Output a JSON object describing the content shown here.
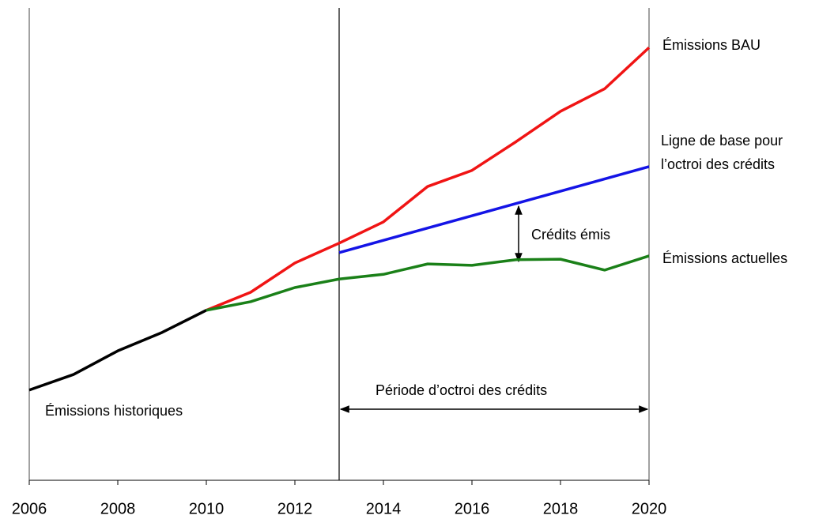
{
  "chart_data": {
    "type": "line",
    "annotations": [
      "Crédits émis",
      "Période d’octroi des crédits"
    ],
    "xlim": [
      2006,
      2020
    ],
    "xticks": [
      2006,
      2008,
      2010,
      2012,
      2014,
      2016,
      2018,
      2020
    ],
    "ylim": [
      0,
      100
    ],
    "series": [
      {
        "name": "Émissions historiques",
        "color": "#000000",
        "x": [
          2006,
          2007,
          2008,
          2009,
          2010
        ],
        "values": [
          19.1,
          22.4,
          27.4,
          31.3,
          36.0
        ]
      },
      {
        "name": "Émissions BAU",
        "color": "#f01414",
        "x": [
          2010,
          2011,
          2012,
          2013,
          2014,
          2015,
          2016,
          2017,
          2018,
          2019,
          2020
        ],
        "values": [
          36.0,
          39.8,
          46.0,
          50.2,
          54.7,
          62.2,
          65.6,
          71.7,
          78.1,
          82.9,
          91.6
        ]
      },
      {
        "name": "Ligne de base pour\nl’octroi des crédits",
        "color": "#1414e6",
        "x": [
          2013,
          2020
        ],
        "values": [
          48.2,
          66.4
        ]
      },
      {
        "name": "Émissions actuelles",
        "color": "#1a8018",
        "x": [
          2010,
          2011,
          2012,
          2013,
          2014,
          2015,
          2016,
          2017,
          2018,
          2019,
          2020
        ],
        "values": [
          36.0,
          37.8,
          40.8,
          42.6,
          43.6,
          45.8,
          45.5,
          46.7,
          46.8,
          44.5,
          47.5
        ]
      }
    ]
  }
}
